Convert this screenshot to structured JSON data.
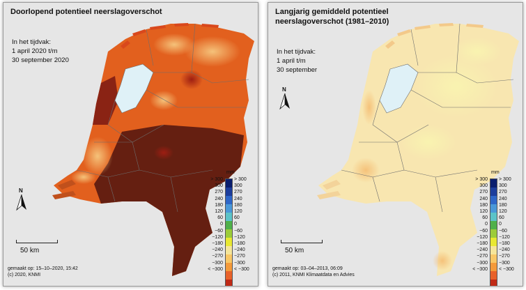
{
  "panels": [
    {
      "title_line1": "Doorlopend potentieel neerslagoverschot",
      "title_line2": "",
      "period_heading": "In het tijdvak:",
      "period_line1": "1 april 2020 t/m",
      "period_line2": "30 september 2020",
      "scale_label": "50 km",
      "north_label": "N",
      "footer_line1": "gemaakt op: 15–10–2020, 15:42",
      "footer_line2": "(c) 2020, KNMI"
    },
    {
      "title_line1": "Langjarig gemiddeld potentieel",
      "title_line2": "neerslagoverschot (1981–2010)",
      "period_heading": "In het tijdvak:",
      "period_line1": "1 april t/m",
      "period_line2": "30 september",
      "scale_label": "50 km",
      "north_label": "N",
      "footer_line1": "gemaakt op: 03–04–2013, 06:09",
      "footer_line2": "(c) 2011, KNMI Klimaatdata en Advies"
    }
  ],
  "legend": {
    "unit": "mm",
    "labels": [
      "> 300",
      "300",
      "270",
      "240",
      "180",
      "120",
      "60",
      "0",
      "−60",
      "−120",
      "−180",
      "−240",
      "−270",
      "−300",
      "< −300"
    ],
    "colors": [
      "#0a1e6e",
      "#1c3d9c",
      "#2e66c8",
      "#4a98d8",
      "#5cc3c8",
      "#4fb04a",
      "#9ccc3a",
      "#e8e832",
      "#f5e59a",
      "#f8c766",
      "#f49a3a",
      "#e8622a",
      "#c02a16",
      "#7a1a0c"
    ]
  },
  "colors": {
    "sea": "#e6e6e6",
    "land_left_base": "#e2601e",
    "land_left_dark": "#5a1a10",
    "land_right_base": "#f8e6b0",
    "land_right_light": "#f9f3b0",
    "water_inland": "#dff1f7",
    "border": "#6d6d6d"
  }
}
